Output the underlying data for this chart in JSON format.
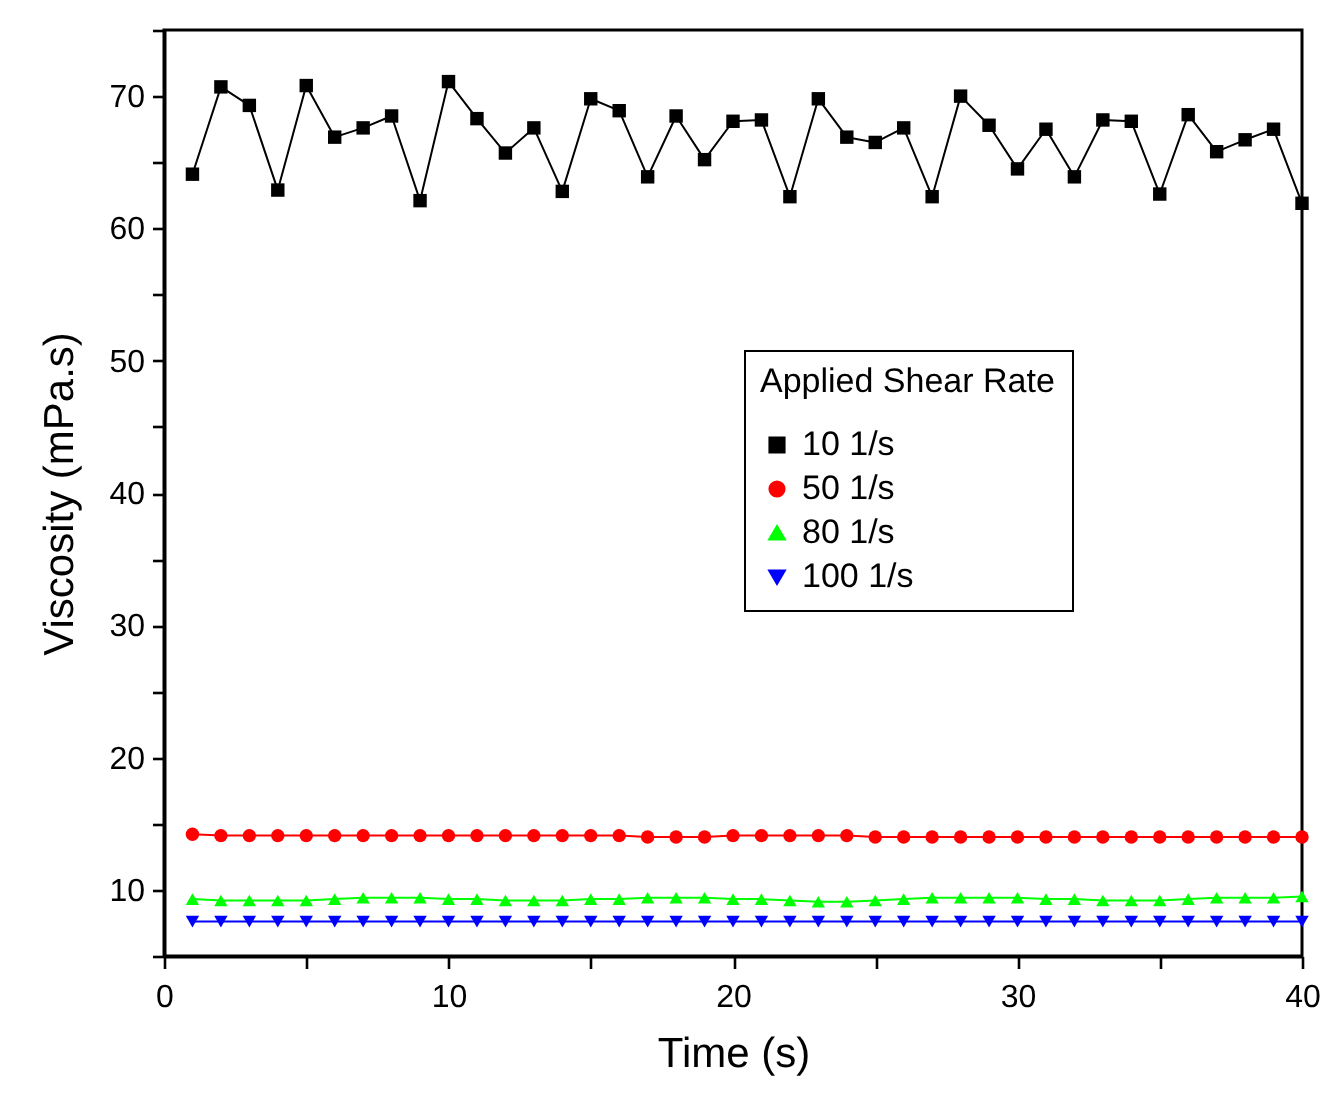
{
  "chart_data": {
    "type": "line",
    "xlabel": "Time (s)",
    "ylabel": "Viscosity (mPa.s)",
    "legend_title": "Applied Shear Rate",
    "legend": "right",
    "grid": false,
    "x": [
      1,
      2,
      3,
      4,
      5,
      6,
      7,
      8,
      9,
      10,
      11,
      12,
      13,
      14,
      15,
      16,
      17,
      18,
      19,
      20,
      21,
      22,
      23,
      24,
      25,
      26,
      27,
      28,
      29,
      30,
      31,
      32,
      33,
      34,
      35,
      36,
      37,
      38,
      39,
      40
    ],
    "xlim": [
      0,
      40
    ],
    "xticks": [
      0,
      {
        "value": 5,
        "label": null
      },
      10,
      {
        "value": 15,
        "label": null
      },
      20,
      {
        "value": 25,
        "label": null
      },
      30,
      {
        "value": 35,
        "label": null
      },
      40
    ],
    "ylim": [
      5,
      75
    ],
    "yticks": [
      {
        "value": 5,
        "label": null
      },
      10,
      {
        "value": 15,
        "label": null
      },
      20,
      {
        "value": 25,
        "label": null
      },
      30,
      {
        "value": 35,
        "label": null
      },
      40,
      {
        "value": 45,
        "label": null
      },
      50,
      {
        "value": 55,
        "label": null
      },
      60,
      {
        "value": 65,
        "label": null
      },
      70,
      {
        "value": 75,
        "label": null
      }
    ],
    "series": [
      {
        "name": "10   1/s",
        "color": "#000000",
        "marker": "square",
        "values": [
          64.1,
          70.7,
          69.3,
          62.9,
          70.8,
          66.9,
          67.6,
          68.5,
          62.1,
          71.1,
          68.3,
          65.7,
          67.6,
          62.8,
          69.8,
          68.9,
          63.9,
          68.5,
          65.2,
          68.1,
          68.2,
          62.4,
          69.8,
          66.9,
          66.5,
          67.6,
          62.4,
          70.0,
          67.8,
          64.5,
          67.5,
          63.9,
          68.2,
          68.1,
          62.6,
          68.6,
          65.8,
          66.7,
          67.5,
          61.9
        ]
      },
      {
        "name": "50   1/s",
        "color": "#ff0000",
        "marker": "circle",
        "values": [
          14.2,
          14.1,
          14.1,
          14.1,
          14.1,
          14.1,
          14.1,
          14.1,
          14.1,
          14.1,
          14.1,
          14.1,
          14.1,
          14.1,
          14.1,
          14.1,
          14.0,
          14.0,
          14.0,
          14.1,
          14.1,
          14.1,
          14.1,
          14.1,
          14.0,
          14.0,
          14.0,
          14.0,
          14.0,
          14.0,
          14.0,
          14.0,
          14.0,
          14.0,
          14.0,
          14.0,
          14.0,
          14.0,
          14.0,
          14.0
        ]
      },
      {
        "name": "80   1/s",
        "color": "#00ff00",
        "marker": "triangle",
        "values": [
          9.3,
          9.2,
          9.2,
          9.2,
          9.2,
          9.3,
          9.4,
          9.4,
          9.4,
          9.3,
          9.3,
          9.2,
          9.2,
          9.2,
          9.3,
          9.3,
          9.4,
          9.4,
          9.4,
          9.3,
          9.3,
          9.2,
          9.1,
          9.1,
          9.2,
          9.3,
          9.4,
          9.4,
          9.4,
          9.4,
          9.3,
          9.3,
          9.2,
          9.2,
          9.2,
          9.3,
          9.4,
          9.4,
          9.4,
          9.5
        ]
      },
      {
        "name": "100 1/s",
        "color": "#0000ff",
        "marker": "triangle_down",
        "values": [
          7.6,
          7.6,
          7.6,
          7.6,
          7.6,
          7.6,
          7.6,
          7.6,
          7.6,
          7.6,
          7.6,
          7.6,
          7.6,
          7.6,
          7.6,
          7.6,
          7.6,
          7.6,
          7.6,
          7.6,
          7.6,
          7.6,
          7.6,
          7.6,
          7.6,
          7.6,
          7.6,
          7.6,
          7.6,
          7.6,
          7.6,
          7.6,
          7.6,
          7.6,
          7.6,
          7.6,
          7.6,
          7.6,
          7.6,
          7.6
        ]
      }
    ]
  }
}
